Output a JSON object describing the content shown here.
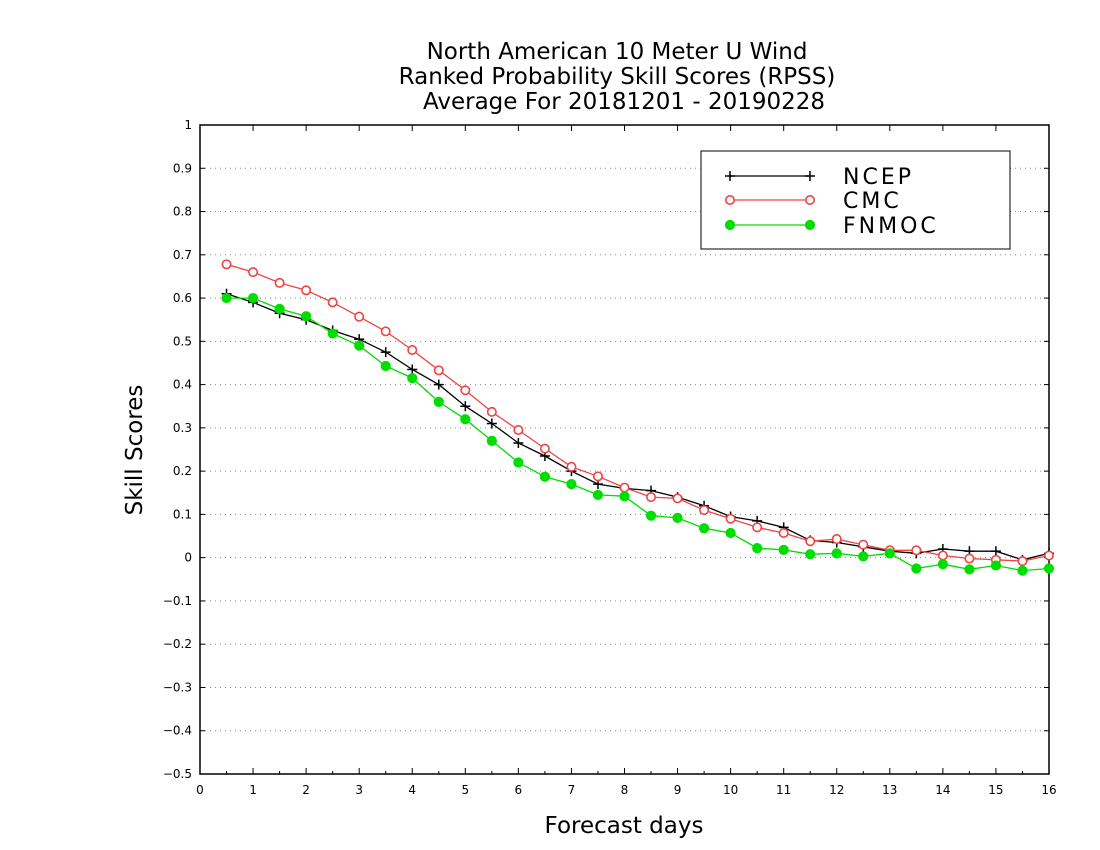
{
  "chart_data": {
    "type": "line",
    "title": [
      "North American 10 Meter U Wind",
      "Ranked Probability Skill Scores (RPSS)",
      "Average For 20181201 - 20190228"
    ],
    "xlabel": "Forecast days",
    "ylabel": "Skill Scores",
    "xlim": [
      0,
      16
    ],
    "ylim": [
      -0.5,
      1
    ],
    "xticks": [
      0,
      1,
      2,
      3,
      4,
      5,
      6,
      7,
      8,
      9,
      10,
      11,
      12,
      13,
      14,
      15,
      16
    ],
    "xtick_labels": [
      "0",
      "1",
      "2",
      "3",
      "4",
      "5",
      "6",
      "7",
      "8",
      "9",
      "10",
      "11",
      "12",
      "13",
      "14",
      "15",
      "16"
    ],
    "yticks": [
      -0.5,
      -0.4,
      -0.3,
      -0.2,
      -0.1,
      0,
      0.1,
      0.2,
      0.3,
      0.4,
      0.5,
      0.6,
      0.7,
      0.8,
      0.9,
      1
    ],
    "ytick_labels": [
      "−0.5",
      "−0.4",
      "−0.3",
      "−0.2",
      "−0.1",
      "0",
      "0.1",
      "0.2",
      "0.3",
      "0.4",
      "0.5",
      "0.6",
      "0.7",
      "0.8",
      "0.9",
      "1"
    ],
    "grid": true,
    "legend_position": "top-right",
    "x": [
      0.5,
      1,
      1.5,
      2,
      2.5,
      3,
      3.5,
      4,
      4.5,
      5,
      5.5,
      6,
      6.5,
      7,
      7.5,
      8,
      8.5,
      9,
      9.5,
      10,
      10.5,
      11,
      11.5,
      12,
      12.5,
      13,
      13.5,
      14,
      14.5,
      15,
      15.5,
      16
    ],
    "series": [
      {
        "name": "NCEP",
        "color": "#000000",
        "marker": "plus",
        "values": [
          0.61,
          0.59,
          0.565,
          0.55,
          0.525,
          0.505,
          0.475,
          0.435,
          0.4,
          0.35,
          0.31,
          0.265,
          0.235,
          0.2,
          0.17,
          0.16,
          0.155,
          0.14,
          0.12,
          0.095,
          0.085,
          0.07,
          0.04,
          0.035,
          0.025,
          0.015,
          0.01,
          0.02,
          0.015,
          0.015,
          -0.005,
          0.01
        ]
      },
      {
        "name": "CMC",
        "color": "#ee4444",
        "marker": "circle-open",
        "values": [
          0.678,
          0.66,
          0.635,
          0.618,
          0.59,
          0.557,
          0.523,
          0.48,
          0.433,
          0.387,
          0.337,
          0.295,
          0.252,
          0.21,
          0.188,
          0.162,
          0.14,
          0.137,
          0.11,
          0.09,
          0.07,
          0.057,
          0.038,
          0.043,
          0.03,
          0.017,
          0.017,
          0.005,
          -0.002,
          -0.005,
          -0.008,
          0.005
        ]
      },
      {
        "name": "FNMOC",
        "color": "#00dd00",
        "marker": "circle-filled",
        "values": [
          0.6,
          0.6,
          0.575,
          0.558,
          0.518,
          0.49,
          0.443,
          0.415,
          0.36,
          0.32,
          0.27,
          0.22,
          0.187,
          0.17,
          0.145,
          0.142,
          0.097,
          0.092,
          0.068,
          0.057,
          0.022,
          0.018,
          0.008,
          0.01,
          0.003,
          0.01,
          -0.025,
          -0.015,
          -0.027,
          -0.018,
          -0.03,
          -0.025
        ]
      }
    ]
  }
}
